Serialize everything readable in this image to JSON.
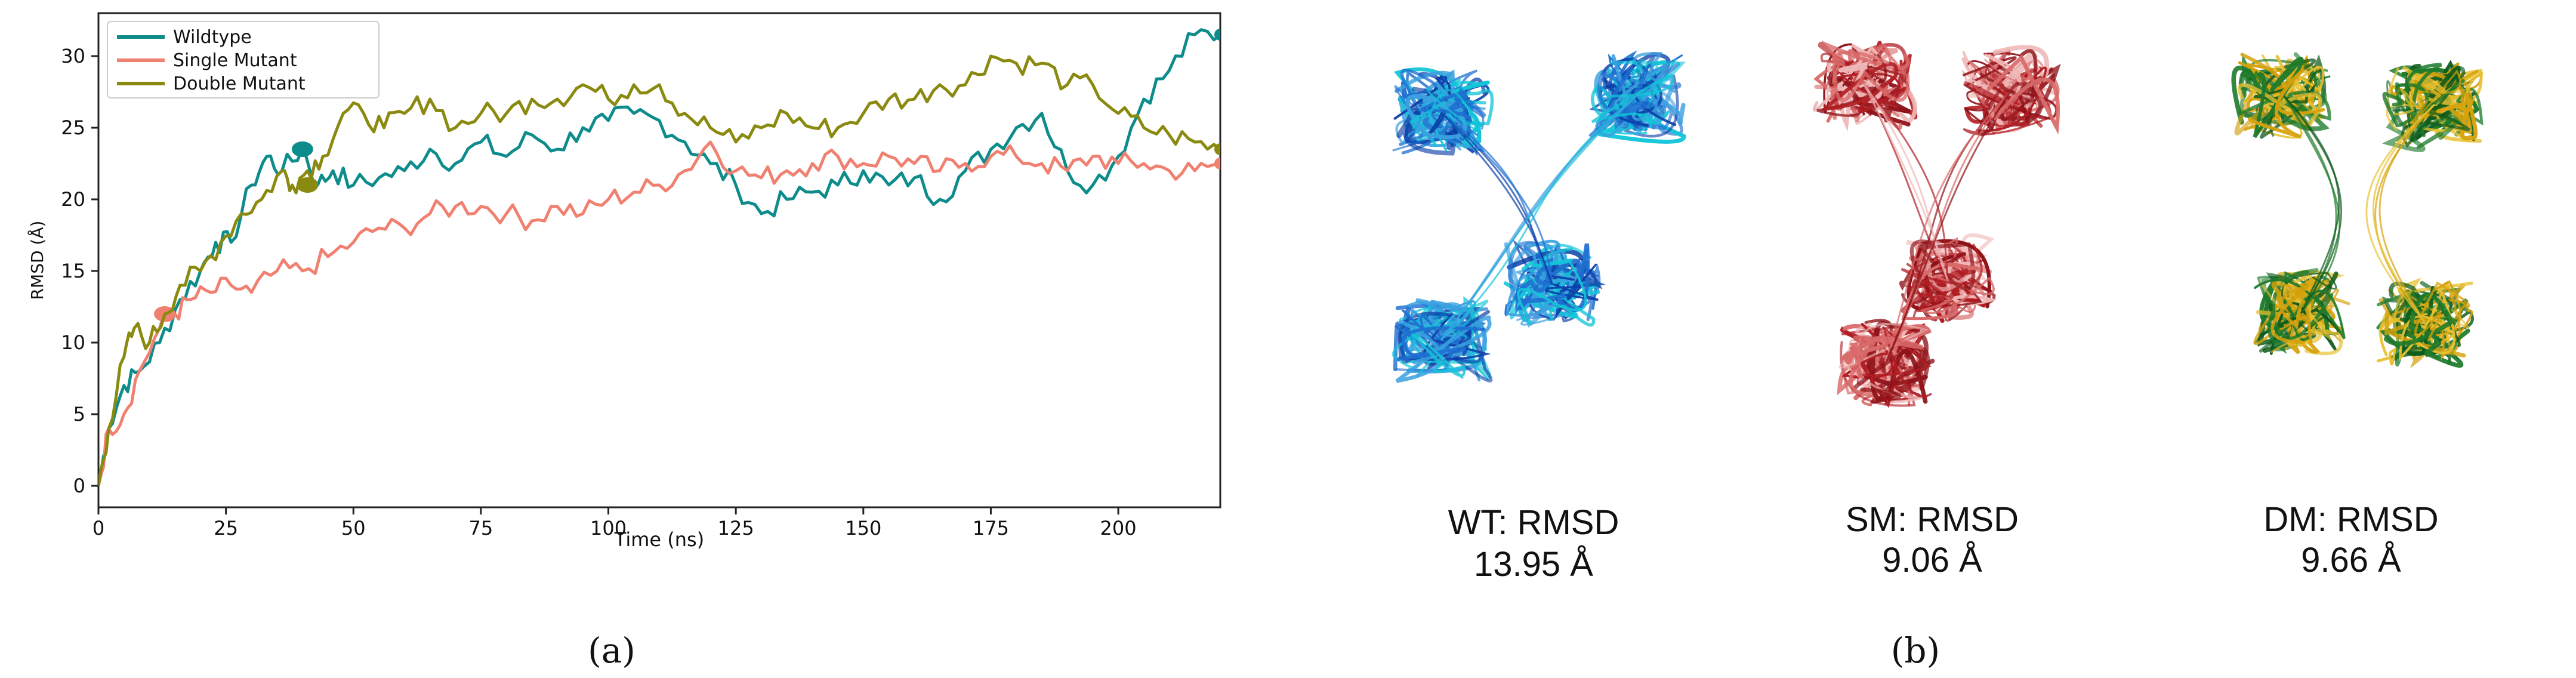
{
  "chart_data": {
    "type": "line",
    "title": "",
    "xlabel": "Time (ns)",
    "ylabel": "RMSD (Å)",
    "xlim": [
      0,
      220
    ],
    "ylim": [
      -1.5,
      33
    ],
    "xticks": [
      0,
      25,
      50,
      75,
      100,
      125,
      150,
      175,
      200
    ],
    "yticks": [
      0,
      5,
      10,
      15,
      20,
      25,
      30
    ],
    "grid": false,
    "legend_position": "top-left",
    "series": [
      {
        "name": "Wildtype",
        "color": "#0e8c8c",
        "x": [
          0,
          2,
          5,
          8,
          12,
          16,
          20,
          23,
          26,
          30,
          33,
          36,
          40,
          43,
          46,
          50,
          55,
          60,
          65,
          70,
          75,
          80,
          85,
          90,
          95,
          100,
          105,
          110,
          115,
          120,
          125,
          130,
          135,
          140,
          145,
          150,
          155,
          160,
          165,
          170,
          175,
          180,
          185,
          190,
          195,
          200,
          205,
          210,
          215,
          220
        ],
        "values": [
          0,
          4,
          7,
          8,
          10,
          13,
          15,
          17,
          17,
          21,
          23,
          22,
          23.5,
          21,
          22,
          21,
          21.5,
          22,
          23.5,
          22.5,
          24,
          23,
          24.5,
          23.5,
          25,
          25.5,
          26,
          25.5,
          24,
          22.5,
          21,
          19,
          20,
          20.5,
          21,
          22,
          21,
          21.5,
          20,
          22,
          23.5,
          25,
          26,
          22,
          21,
          23,
          27,
          29,
          31.5,
          31.5
        ],
        "marker": {
          "x": 40,
          "y": 23.5
        }
      },
      {
        "name": "Single Mutant",
        "color": "#f08070",
        "x": [
          0,
          2,
          5,
          8,
          12,
          15,
          18,
          22,
          26,
          30,
          35,
          40,
          45,
          50,
          55,
          60,
          65,
          70,
          75,
          80,
          85,
          90,
          95,
          100,
          105,
          110,
          115,
          120,
          125,
          130,
          135,
          140,
          145,
          150,
          155,
          160,
          165,
          170,
          175,
          180,
          185,
          190,
          195,
          200,
          205,
          210,
          215,
          220
        ],
        "values": [
          0,
          4,
          5,
          8,
          11,
          12,
          13,
          13.5,
          14,
          13.5,
          15,
          15,
          16,
          17,
          18,
          18,
          19,
          19.5,
          19.5,
          19,
          18.5,
          19.5,
          19,
          20,
          20.5,
          21,
          22,
          24,
          22,
          21.5,
          22,
          22.5,
          23,
          22.5,
          23,
          22.5,
          22,
          22.5,
          23,
          23,
          22.5,
          22,
          23,
          22.5,
          22.5,
          22,
          22,
          22.5
        ],
        "marker": {
          "x": 13,
          "y": 12
        }
      },
      {
        "name": "Double Mutant",
        "color": "#8a8a10",
        "x": [
          0,
          2,
          5,
          7,
          10,
          13,
          16,
          20,
          24,
          28,
          32,
          36,
          38,
          41,
          44,
          48,
          52,
          56,
          60,
          65,
          70,
          75,
          80,
          85,
          90,
          95,
          100,
          105,
          110,
          115,
          120,
          125,
          130,
          135,
          140,
          145,
          150,
          155,
          160,
          165,
          170,
          175,
          180,
          185,
          190,
          195,
          200,
          205,
          210,
          215,
          220
        ],
        "values": [
          0,
          4,
          9,
          11,
          10,
          12,
          14,
          15,
          17,
          19,
          20,
          22,
          21,
          22,
          23,
          26,
          26,
          25,
          26,
          27,
          25,
          26,
          26,
          27,
          27,
          28,
          27,
          28,
          28,
          26,
          25,
          24,
          25,
          26,
          25,
          25,
          26,
          27,
          27,
          28,
          28,
          30,
          29.5,
          29.5,
          28,
          28,
          26,
          25,
          24.5,
          24,
          23.5
        ],
        "marker": {
          "x": 41,
          "y": 21
        }
      }
    ]
  },
  "panel_a_label": "(a)",
  "panel_b_label": "(b)",
  "structures": [
    {
      "label": "WT: RMSD",
      "value": "13.95 Å",
      "colors": [
        "#1e6fd0",
        "#12c5d8",
        "#0b3fa8",
        "#3aa0e0"
      ]
    },
    {
      "label": "SM: RMSD",
      "value": "9.06 Å",
      "colors": [
        "#b01e24",
        "#d96a6a",
        "#f0b8b8",
        "#8e1218"
      ]
    },
    {
      "label": "DM: RMSD",
      "value": "9.66 Å",
      "colors": [
        "#1d7a2a",
        "#d6a20c",
        "#0e5a1c",
        "#e8c030"
      ]
    }
  ]
}
